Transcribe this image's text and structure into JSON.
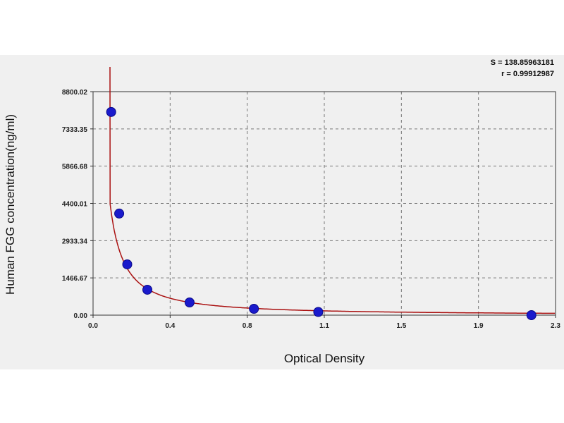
{
  "stats": {
    "s_line": "S = 138.85963181",
    "r_line": "r = 0.99912987"
  },
  "chart_data": {
    "type": "scatter",
    "title": "",
    "xlabel": "Optical Density",
    "ylabel": "Human FGG concentration(ng/ml)",
    "xlim": [
      0,
      2.3
    ],
    "ylim": [
      0,
      8800.02
    ],
    "x_ticks": [
      "0.0",
      "0.4",
      "0.8",
      "1.1",
      "1.5",
      "1.9",
      "2.3"
    ],
    "y_ticks": [
      "0.00",
      "1466.67",
      "2933.34",
      "4400.01",
      "5866.68",
      "7333.35",
      "8800.02"
    ],
    "grid": true,
    "series": [
      {
        "kind": "points",
        "x": [
          0.09,
          0.13,
          0.17,
          0.27,
          0.48,
          0.8,
          1.12,
          2.18
        ],
        "y": [
          8000,
          4000,
          2000,
          1000,
          500,
          250,
          125,
          0
        ],
        "color": "#1a1acc"
      },
      {
        "kind": "fit-curve",
        "color": "#aa1111"
      }
    ]
  }
}
